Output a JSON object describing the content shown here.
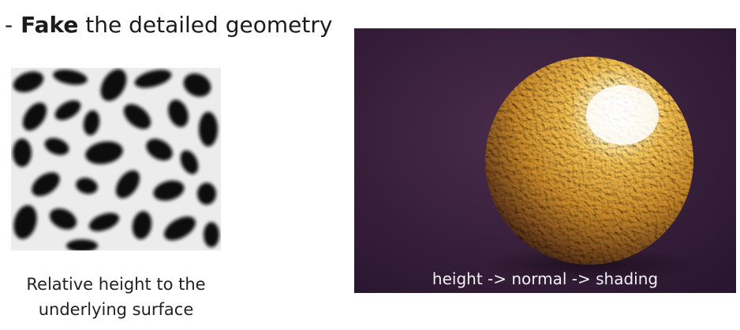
{
  "slide": {
    "bullet": "-",
    "title_bold": "Fake",
    "title_rest": " the detailed geometry",
    "left_caption_line1": "Relative height to the",
    "left_caption_line2": "underlying surface",
    "right_caption": "height -> normal -> shading"
  },
  "colors": {
    "background": "#ffffff",
    "text": "#1c1c1c",
    "render_background": "#3e2440",
    "sphere_base": "#d9a23a",
    "heightmap_dark": "#111111",
    "heightmap_light": "#ececec"
  },
  "images": {
    "left": "height-map-texture",
    "right": "bump-mapped-sphere-render"
  }
}
